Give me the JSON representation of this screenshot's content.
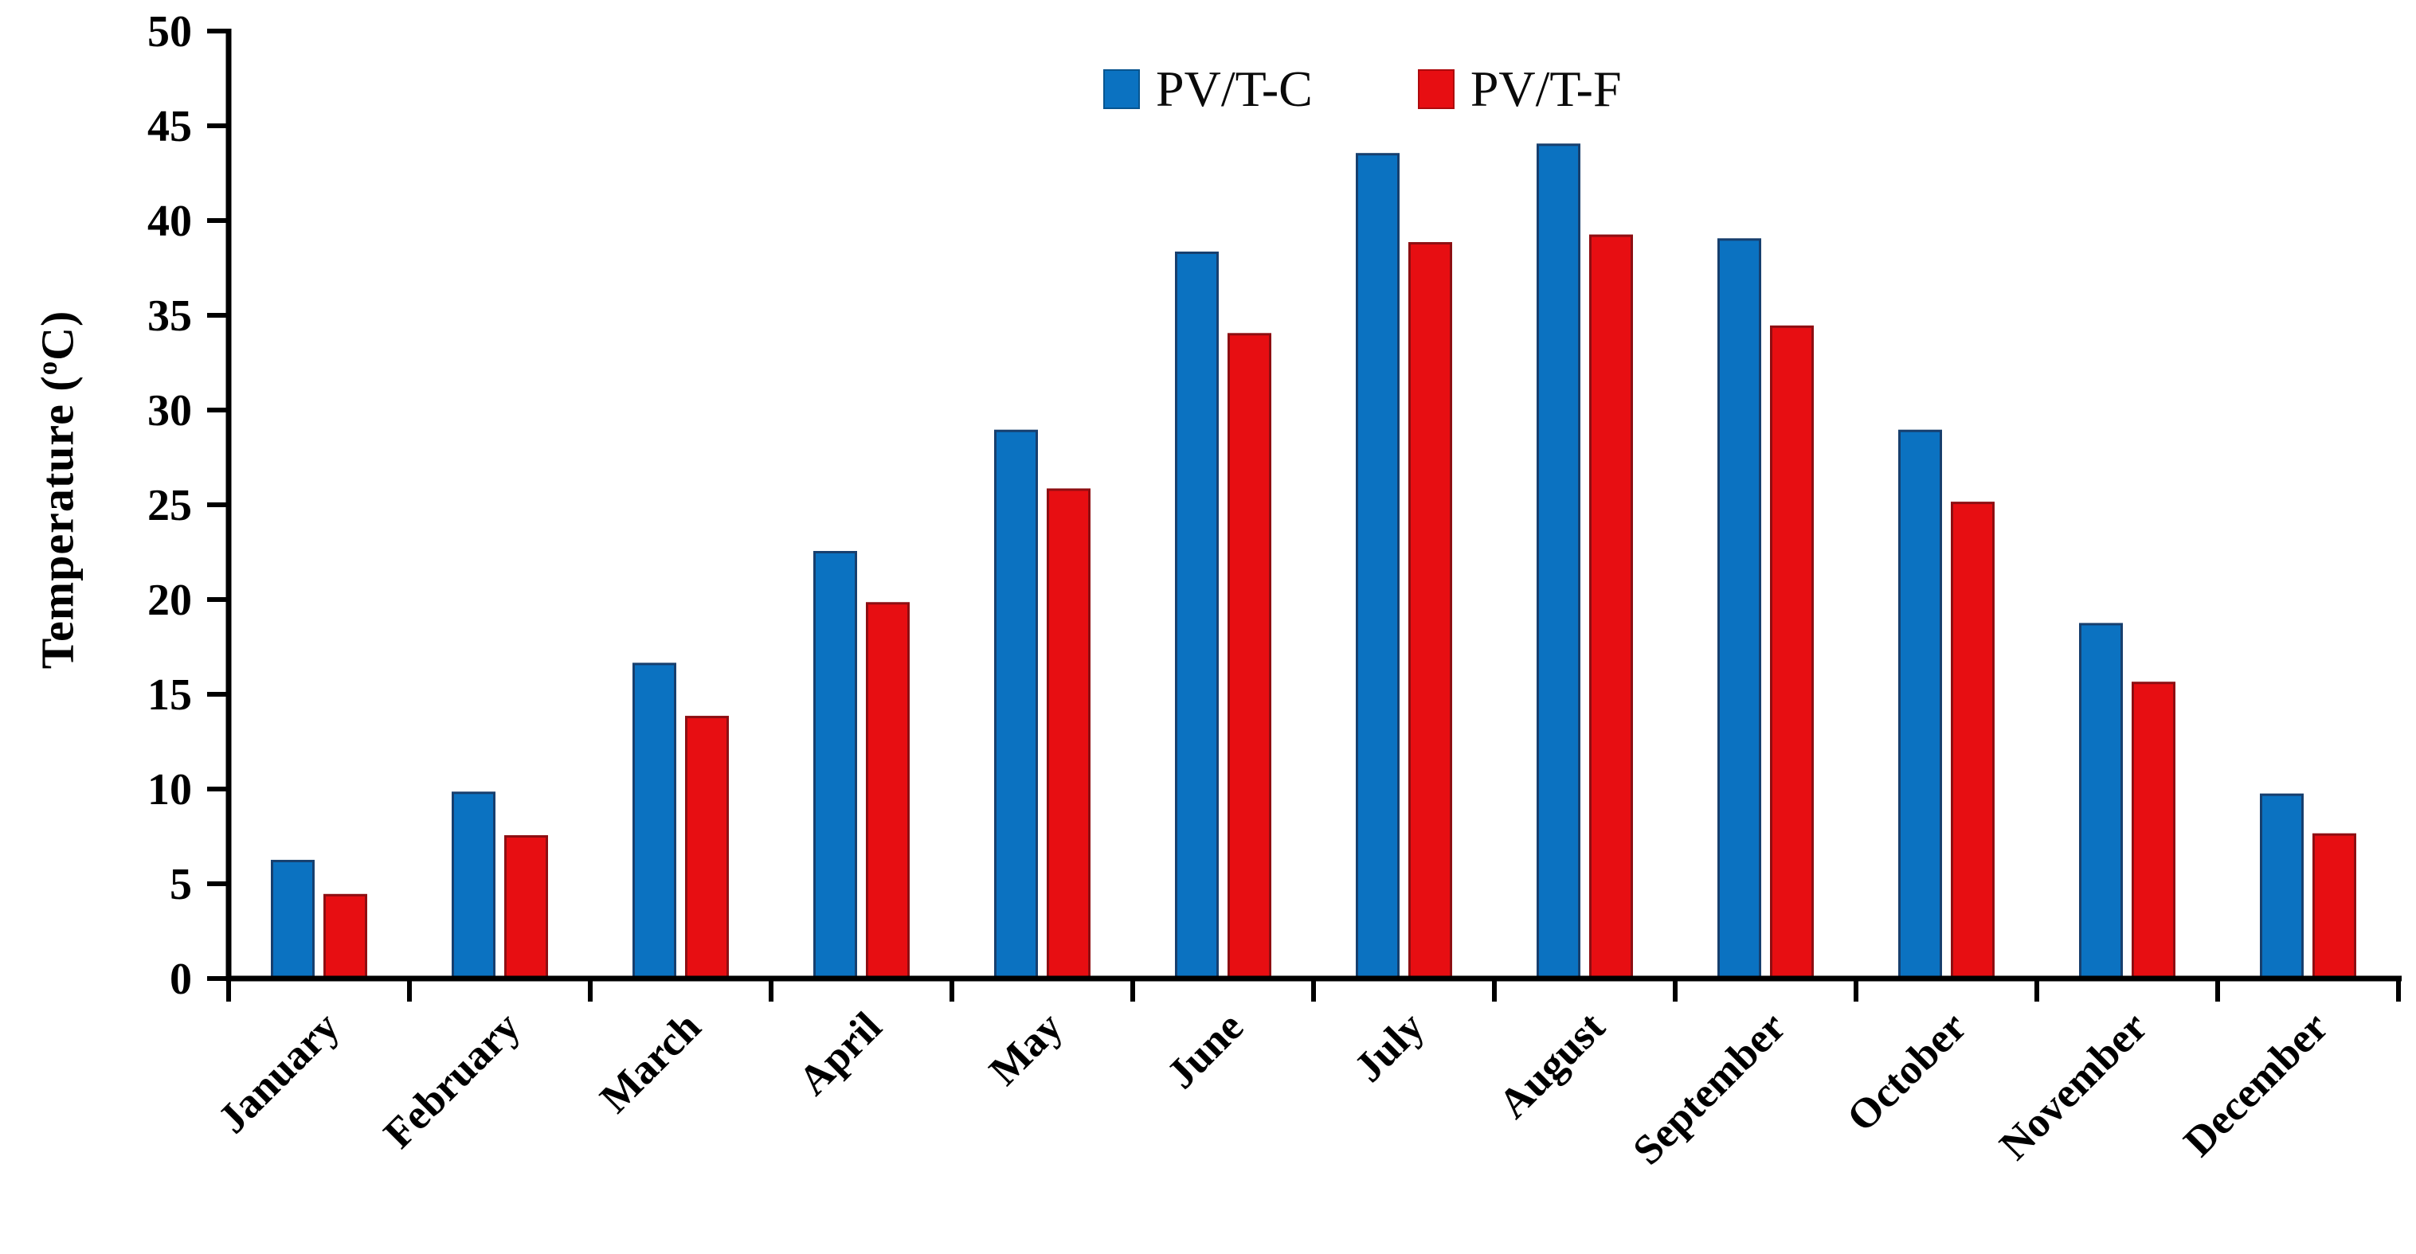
{
  "figure": {
    "background": "#ffffff",
    "axis_color": "#000000",
    "text_color": "#000000"
  },
  "legend": {
    "items": [
      {
        "label": "PV/T-C",
        "color": "#0b72c1"
      },
      {
        "label": "PV/T-F",
        "color": "#e70e12"
      }
    ]
  },
  "y_axis": {
    "title_prefix": "Temperature (",
    "title_sup": "o",
    "title_suffix": "C)",
    "ticks": [
      0,
      5,
      10,
      15,
      20,
      25,
      30,
      35,
      40,
      45,
      50
    ]
  },
  "chart_data": {
    "type": "bar",
    "title": "",
    "xlabel": "",
    "ylabel": "Temperature (°C)",
    "ylim": [
      0,
      50
    ],
    "y_tick_step": 5,
    "grid": false,
    "legend_position": "top-center",
    "categories": [
      "January",
      "February",
      "March",
      "April",
      "May",
      "June",
      "July",
      "August",
      "September",
      "October",
      "November",
      "December"
    ],
    "series": [
      {
        "name": "PV/T-C",
        "color": "#0b72c1",
        "edge_color": "#173f6e",
        "values": [
          6.2,
          9.8,
          16.6,
          22.5,
          28.9,
          38.3,
          43.5,
          44.0,
          39.0,
          28.9,
          18.7,
          9.7
        ]
      },
      {
        "name": "PV/T-F",
        "color": "#e70e12",
        "edge_color": "#8e0e12",
        "values": [
          4.4,
          7.5,
          13.8,
          19.8,
          25.8,
          34.0,
          38.8,
          39.2,
          34.4,
          25.1,
          15.6,
          7.6
        ]
      }
    ]
  }
}
